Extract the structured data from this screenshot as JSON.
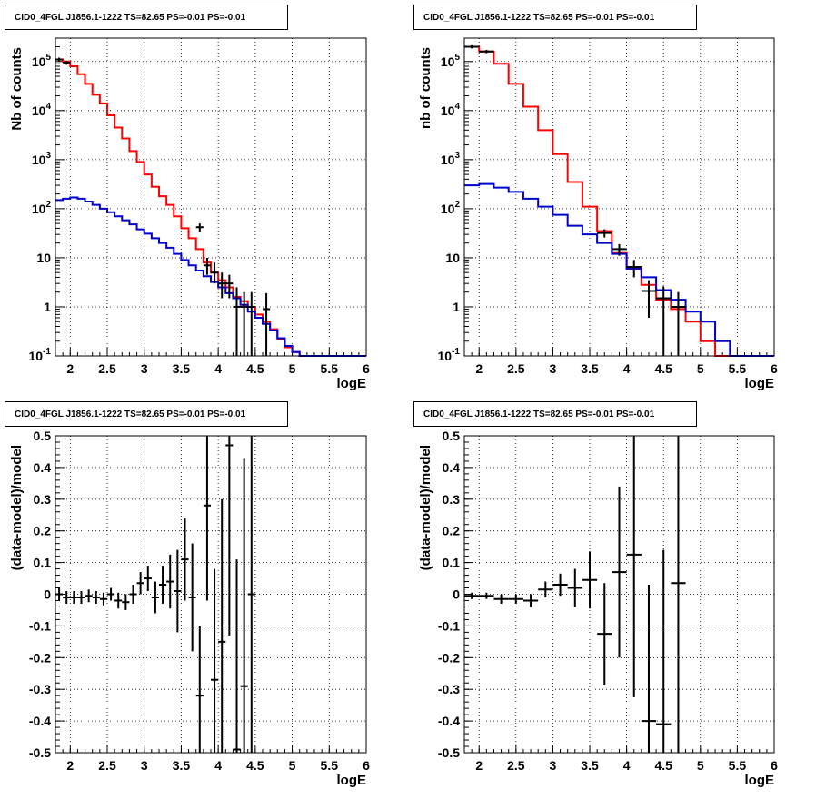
{
  "panel_title": "CID0_4FGL J1856.1-1222 TS=82.65 PS=-0.01 PS=-0.01",
  "colors": {
    "data": "#000000",
    "total": "#ff0000",
    "background": "#0000cc",
    "grid": "#000000"
  },
  "chart_data": [
    {
      "type": "line",
      "title": "CID0_4FGL J1856.1-1222 TS=82.65 PS=-0.01 PS=-0.01",
      "xlabel": "logE",
      "ylabel": "Nb of counts",
      "xlim": [
        1.8,
        6
      ],
      "ylim": [
        0.1,
        300000
      ],
      "yscale": "log",
      "grid": true,
      "x_ticks": [
        "2",
        "2.5",
        "3",
        "3.5",
        "4",
        "4.5",
        "5",
        "5.5",
        "6"
      ],
      "y_ticks": [
        "10^-1",
        "1",
        "10",
        "10^2",
        "10^3",
        "10^4",
        "10^5"
      ],
      "series": [
        {
          "role": "total",
          "bin_edges": [
            1.8,
            1.9,
            2.0,
            2.1,
            2.2,
            2.3,
            2.4,
            2.5,
            2.6,
            2.7,
            2.8,
            2.9,
            3.0,
            3.1,
            3.2,
            3.3,
            3.4,
            3.5,
            3.6,
            3.7,
            3.8,
            3.9,
            4.0,
            4.1,
            4.2,
            4.3,
            4.4,
            4.5,
            4.6,
            4.7,
            4.8,
            4.9,
            5.0,
            5.1,
            5.2,
            5.3,
            5.4,
            5.5,
            5.6,
            5.7,
            5.8,
            5.9,
            6.0
          ],
          "values": [
            110000,
            100000,
            80000,
            55000,
            35000,
            21000,
            14000,
            8000,
            4500,
            2700,
            1500,
            900,
            500,
            280,
            180,
            120,
            70,
            40,
            25,
            15,
            8,
            5,
            3.5,
            2.5,
            1.6,
            1.3,
            1.0,
            0.7,
            0.5,
            0.35,
            0.22,
            0.15,
            0.12,
            0.1,
            0.1,
            0.1,
            0.1,
            0.1,
            0.1,
            0.1,
            0.1,
            0.1
          ]
        },
        {
          "role": "background",
          "bin_edges": [
            1.8,
            1.9,
            2.0,
            2.1,
            2.2,
            2.3,
            2.4,
            2.5,
            2.6,
            2.7,
            2.8,
            2.9,
            3.0,
            3.1,
            3.2,
            3.3,
            3.4,
            3.5,
            3.6,
            3.7,
            3.8,
            3.9,
            4.0,
            4.1,
            4.2,
            4.3,
            4.4,
            4.5,
            4.6,
            4.7,
            4.8,
            4.9,
            5.0,
            5.1,
            5.2,
            5.3,
            5.4,
            5.5,
            5.6,
            5.7,
            5.8,
            5.9,
            6.0
          ],
          "values": [
            150,
            160,
            170,
            160,
            140,
            120,
            100,
            85,
            70,
            58,
            48,
            38,
            31,
            25,
            20,
            16,
            12,
            9,
            7,
            5.5,
            4.2,
            3.2,
            2.5,
            1.9,
            1.5,
            1.1,
            0.8,
            0.6,
            0.45,
            0.33,
            0.23,
            0.16,
            0.12,
            0.1,
            0.1,
            0.1,
            0.1,
            0.1,
            0.1,
            0.1,
            0.1,
            0.1
          ]
        },
        {
          "role": "data",
          "points": [
            {
              "x": 1.85,
              "y": 110000,
              "xerr": 0.05,
              "yerr": [
                100000,
                120000
              ]
            },
            {
              "x": 1.95,
              "y": 95000,
              "xerr": 0.05,
              "yerr": [
                86000,
                104000
              ]
            },
            {
              "x": 3.75,
              "y": 42,
              "xerr": 0.05,
              "yerr": [
                34,
                50
              ]
            },
            {
              "x": 3.85,
              "y": 7,
              "xerr": 0.05,
              "yerr": [
                4.5,
                10
              ]
            },
            {
              "x": 3.95,
              "y": 5,
              "xerr": 0.05,
              "yerr": [
                3,
                8
              ]
            },
            {
              "x": 4.05,
              "y": 3,
              "xerr": 0.05,
              "yerr": [
                1.5,
                5
              ]
            },
            {
              "x": 4.15,
              "y": 3,
              "xerr": 0.05,
              "yerr": [
                1.5,
                4.5
              ]
            },
            {
              "x": 4.25,
              "y": 1,
              "xerr": 0.05,
              "yerr": [
                0.1,
                2.5
              ]
            },
            {
              "x": 4.35,
              "y": 1,
              "xerr": 0.05,
              "yerr": [
                0.1,
                2
              ]
            },
            {
              "x": 4.45,
              "y": 1,
              "xerr": 0.05,
              "yerr": [
                0.1,
                2
              ]
            },
            {
              "x": 4.65,
              "y": 0.9,
              "xerr": 0.05,
              "yerr": [
                0.1,
                1.9
              ]
            }
          ]
        }
      ]
    },
    {
      "type": "line",
      "title": "CID0_4FGL J1856.1-1222 TS=82.65 PS=-0.01 PS=-0.01",
      "xlabel": "logE",
      "ylabel": "nb of counts",
      "xlim": [
        1.8,
        6
      ],
      "ylim": [
        0.1,
        300000
      ],
      "yscale": "log",
      "grid": true,
      "x_ticks": [
        "2",
        "2.5",
        "3",
        "3.5",
        "4",
        "4.5",
        "5",
        "5.5",
        "6"
      ],
      "y_ticks": [
        "10^-1",
        "1",
        "10",
        "10^2",
        "10^3",
        "10^4",
        "10^5"
      ],
      "series": [
        {
          "role": "total",
          "bin_edges": [
            1.8,
            2.0,
            2.2,
            2.4,
            2.6,
            2.8,
            3.0,
            3.2,
            3.4,
            3.6,
            3.8,
            4.0,
            4.2,
            4.4,
            4.6,
            4.8,
            5.0,
            5.2,
            5.4,
            5.6,
            5.8,
            6.0
          ],
          "values": [
            200000,
            160000,
            90000,
            35000,
            12000,
            4000,
            1300,
            350,
            110,
            35,
            13,
            6,
            2.8,
            1.4,
            0.9,
            0.5,
            0.2,
            0.1,
            0.1,
            0.1,
            0.1
          ]
        },
        {
          "role": "background",
          "bin_edges": [
            1.8,
            2.0,
            2.2,
            2.4,
            2.6,
            2.8,
            3.0,
            3.2,
            3.4,
            3.6,
            3.8,
            4.0,
            4.2,
            4.4,
            4.6,
            4.8,
            5.0,
            5.2,
            5.4,
            5.6,
            5.8,
            6.0
          ],
          "values": [
            300,
            320,
            270,
            220,
            160,
            110,
            75,
            45,
            30,
            20,
            12,
            6,
            4,
            2.2,
            1.4,
            0.8,
            0.5,
            0.2,
            0.1,
            0.1,
            0.1
          ]
        },
        {
          "role": "data",
          "points": [
            {
              "x": 1.9,
              "y": 200000,
              "xerr": 0.1,
              "yerr": [
                185000,
                215000
              ]
            },
            {
              "x": 2.1,
              "y": 160000,
              "xerr": 0.1,
              "yerr": [
                148000,
                172000
              ]
            },
            {
              "x": 3.7,
              "y": 32,
              "xerr": 0.1,
              "yerr": [
                26,
                38
              ]
            },
            {
              "x": 3.9,
              "y": 15,
              "xerr": 0.1,
              "yerr": [
                11,
                19
              ]
            },
            {
              "x": 4.1,
              "y": 6.5,
              "xerr": 0.1,
              "yerr": [
                4,
                9
              ]
            },
            {
              "x": 4.3,
              "y": 2.1,
              "xerr": 0.1,
              "yerr": [
                0.6,
                3.5
              ]
            },
            {
              "x": 4.5,
              "y": 1.5,
              "xerr": 0.1,
              "yerr": [
                0.1,
                2.6
              ]
            },
            {
              "x": 4.7,
              "y": 1,
              "xerr": 0.1,
              "yerr": [
                0.1,
                2
              ]
            }
          ]
        }
      ]
    },
    {
      "type": "scatter",
      "title": "CID0_4FGL J1856.1-1222 TS=82.65 PS=-0.01 PS=-0.01",
      "xlabel": "logE",
      "ylabel": "(data-model)/model",
      "xlim": [
        1.8,
        6
      ],
      "ylim": [
        -0.5,
        0.5
      ],
      "grid": true,
      "x_ticks": [
        "2",
        "2.5",
        "3",
        "3.5",
        "4",
        "4.5",
        "5",
        "5.5",
        "6"
      ],
      "y_ticks": [
        "-0.5",
        "-0.4",
        "-0.3",
        "-0.2",
        "-0.1",
        "0",
        "0.1",
        "0.2",
        "0.3",
        "0.4",
        "0.5"
      ],
      "points": [
        {
          "x": 1.85,
          "y": 0.0,
          "xerr": 0.05,
          "yerr": 0.02
        },
        {
          "x": 1.95,
          "y": -0.01,
          "xerr": 0.05,
          "yerr": 0.02
        },
        {
          "x": 2.05,
          "y": -0.01,
          "xerr": 0.05,
          "yerr": 0.02
        },
        {
          "x": 2.15,
          "y": -0.01,
          "xerr": 0.05,
          "yerr": 0.02
        },
        {
          "x": 2.25,
          "y": -0.005,
          "xerr": 0.05,
          "yerr": 0.02
        },
        {
          "x": 2.35,
          "y": -0.01,
          "xerr": 0.05,
          "yerr": 0.02
        },
        {
          "x": 2.45,
          "y": -0.015,
          "xerr": 0.05,
          "yerr": 0.02
        },
        {
          "x": 2.55,
          "y": 0.0,
          "xerr": 0.05,
          "yerr": 0.02
        },
        {
          "x": 2.65,
          "y": -0.02,
          "xerr": 0.05,
          "yerr": 0.025
        },
        {
          "x": 2.75,
          "y": -0.025,
          "xerr": 0.05,
          "yerr": 0.025
        },
        {
          "x": 2.85,
          "y": 0.0,
          "xerr": 0.05,
          "yerr": 0.03
        },
        {
          "x": 2.95,
          "y": 0.035,
          "xerr": 0.05,
          "yerr": 0.035
        },
        {
          "x": 3.05,
          "y": 0.05,
          "xerr": 0.05,
          "yerr": 0.04
        },
        {
          "x": 3.15,
          "y": -0.01,
          "xerr": 0.05,
          "yerr": 0.05
        },
        {
          "x": 3.25,
          "y": 0.03,
          "xerr": 0.05,
          "yerr": 0.06
        },
        {
          "x": 3.35,
          "y": 0.04,
          "xerr": 0.05,
          "yerr": 0.085
        },
        {
          "x": 3.45,
          "y": 0.01,
          "xerr": 0.05,
          "yerr": 0.13
        },
        {
          "x": 3.55,
          "y": 0.11,
          "xerr": 0.05,
          "yerr": 0.13
        },
        {
          "x": 3.65,
          "y": -0.01,
          "xerr": 0.05,
          "yerr": 0.17
        },
        {
          "x": 3.75,
          "y": -0.32,
          "xerr": 0.05,
          "yerr": 0.22
        },
        {
          "x": 3.85,
          "y": 0.28,
          "xerr": 0.05,
          "yerr": 0.3
        },
        {
          "x": 3.95,
          "y": -0.27,
          "xerr": 0.05,
          "yerr": 0.35
        },
        {
          "x": 4.05,
          "y": -0.15,
          "xerr": 0.05,
          "yerr": 0.45
        },
        {
          "x": 4.15,
          "y": 0.47,
          "xerr": 0.05,
          "yerr": 0.6
        },
        {
          "x": 4.25,
          "y": -0.49,
          "xerr": 0.05,
          "yerr": 0.6
        },
        {
          "x": 4.35,
          "y": -0.29,
          "xerr": 0.05,
          "yerr": 0.72
        },
        {
          "x": 4.45,
          "y": 0.0,
          "xerr": 0.05,
          "yerr": 0.9
        }
      ]
    },
    {
      "type": "scatter",
      "title": "CID0_4FGL J1856.1-1222 TS=82.65 PS=-0.01 PS=-0.01",
      "xlabel": "logE",
      "ylabel": "(data-model)/model",
      "xlim": [
        1.8,
        6
      ],
      "ylim": [
        -0.5,
        0.5
      ],
      "grid": true,
      "x_ticks": [
        "2",
        "2.5",
        "3",
        "3.5",
        "4",
        "4.5",
        "5",
        "5.5",
        "6"
      ],
      "y_ticks": [
        "-0.5",
        "-0.4",
        "-0.3",
        "-0.2",
        "-0.1",
        "0",
        "0.1",
        "0.2",
        "0.3",
        "0.4",
        "0.5"
      ],
      "points": [
        {
          "x": 1.9,
          "y": -0.005,
          "xerr": 0.1,
          "yerr": 0.01
        },
        {
          "x": 2.1,
          "y": -0.005,
          "xerr": 0.1,
          "yerr": 0.01
        },
        {
          "x": 2.3,
          "y": -0.015,
          "xerr": 0.1,
          "yerr": 0.015
        },
        {
          "x": 2.5,
          "y": -0.015,
          "xerr": 0.1,
          "yerr": 0.015
        },
        {
          "x": 2.7,
          "y": -0.02,
          "xerr": 0.1,
          "yerr": 0.02
        },
        {
          "x": 2.9,
          "y": 0.015,
          "xerr": 0.1,
          "yerr": 0.025
        },
        {
          "x": 3.1,
          "y": 0.03,
          "xerr": 0.1,
          "yerr": 0.035
        },
        {
          "x": 3.3,
          "y": 0.02,
          "xerr": 0.1,
          "yerr": 0.06
        },
        {
          "x": 3.5,
          "y": 0.045,
          "xerr": 0.1,
          "yerr": 0.09
        },
        {
          "x": 3.7,
          "y": -0.125,
          "xerr": 0.1,
          "yerr": 0.16
        },
        {
          "x": 3.9,
          "y": 0.07,
          "xerr": 0.1,
          "yerr": 0.27
        },
        {
          "x": 4.1,
          "y": 0.125,
          "xerr": 0.1,
          "yerr": 0.45
        },
        {
          "x": 4.3,
          "y": -0.4,
          "xerr": 0.1,
          "yerr": 0.43
        },
        {
          "x": 4.5,
          "y": -0.41,
          "xerr": 0.1,
          "yerr": 0.55
        },
        {
          "x": 4.7,
          "y": 0.035,
          "xerr": 0.1,
          "yerr": 0.78
        }
      ]
    }
  ]
}
